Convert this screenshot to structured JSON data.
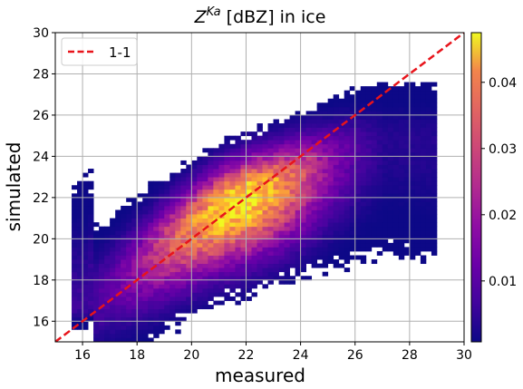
{
  "chart_data": {
    "type": "heatmap",
    "title_base": "Z",
    "title_sup": "Ka",
    "title_rest": " [dBZ] in ice",
    "xlabel": "measured",
    "ylabel": "simulated",
    "xlim": [
      15,
      30
    ],
    "ylim": [
      15,
      30
    ],
    "xticks": [
      "16",
      "18",
      "20",
      "22",
      "24",
      "26",
      "28",
      "30"
    ],
    "yticks": [
      "16",
      "18",
      "20",
      "22",
      "24",
      "26",
      "28",
      "30"
    ],
    "grid": true,
    "legend": {
      "placement": "top-left",
      "label": "1-1",
      "color": "#e8141b",
      "style": "dashed"
    },
    "reference_line": {
      "name": "1-1",
      "x": [
        15,
        30
      ],
      "y": [
        15,
        30
      ]
    },
    "colorbar": {
      "colormap": "plasma",
      "range": [
        0.0008,
        0.0475
      ],
      "ticks": [
        "0.01",
        "0.02",
        "0.03",
        "0.04"
      ]
    },
    "density_ridge": {
      "x": [
        16,
        17,
        18,
        19,
        20,
        21,
        22,
        23,
        24,
        25,
        26,
        27
      ],
      "y": [
        16.6,
        17.6,
        18.6,
        19.6,
        20.5,
        21.3,
        21.9,
        22.4,
        23.0,
        23.6,
        24.2,
        24.6
      ],
      "peak_density": [
        0.005,
        0.009,
        0.016,
        0.026,
        0.036,
        0.044,
        0.046,
        0.038,
        0.026,
        0.014,
        0.007,
        0.003
      ]
    }
  }
}
